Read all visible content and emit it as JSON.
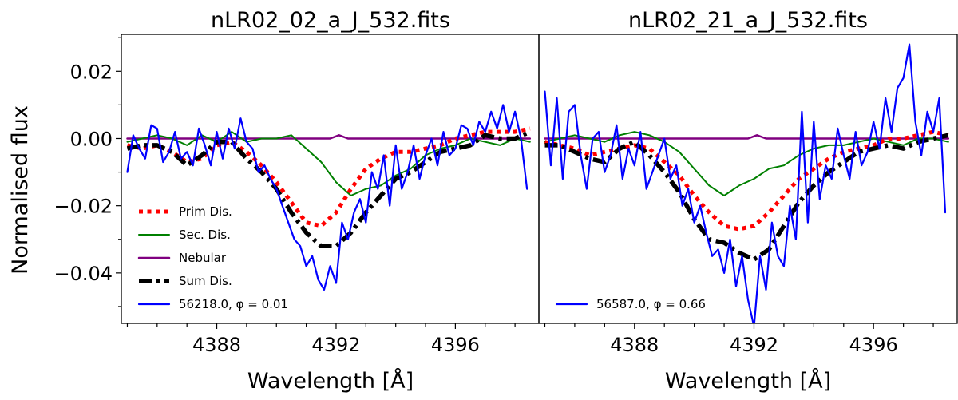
{
  "chart_data": {
    "type": "line",
    "ylabel": "Normalised flux",
    "xlabel": "Wavelength [Å]",
    "xlim": [
      4384.8,
      4398.8
    ],
    "ylim": [
      -0.055,
      0.031
    ],
    "xticks": [
      4388,
      4392,
      4396
    ],
    "xtick_labels": [
      "4388",
      "4392",
      "4396"
    ],
    "yticks": [
      0.02,
      0.0,
      -0.02,
      -0.04
    ],
    "ytick_labels": [
      "0.02",
      "0.00",
      "−0.02",
      "−0.04"
    ],
    "colors": {
      "prim": "#ff0000",
      "sec": "#008000",
      "neb": "#800080",
      "sum": "#000000",
      "obs": "#0000ff"
    },
    "panels": [
      {
        "title": "nLR02_02_a_J_532.fits",
        "legend": [
          {
            "key": "prim",
            "label": "Prim Dis."
          },
          {
            "key": "sec",
            "label": "Sec. Dis."
          },
          {
            "key": "neb",
            "label": "Nebular"
          },
          {
            "key": "sum",
            "label": "Sum Dis."
          },
          {
            "key": "obs",
            "label": "56218.0, φ = 0.01"
          }
        ],
        "series": [
          {
            "key": "neb",
            "name": "Nebular",
            "x": [
              4385.0,
              4390.0,
              4391.8,
              4392.1,
              4392.4,
              4398.5
            ],
            "y": [
              0.0,
              0.0,
              0.0,
              0.001,
              0.0,
              0.0
            ]
          },
          {
            "key": "sec",
            "name": "Sec. Dis.",
            "x": [
              4385.0,
              4385.5,
              4386.0,
              4386.5,
              4387.0,
              4387.5,
              4388.0,
              4388.5,
              4389.0,
              4389.5,
              4390.0,
              4390.5,
              4391.0,
              4391.5,
              4392.0,
              4392.5,
              4393.0,
              4393.5,
              4394.0,
              4394.5,
              4395.0,
              4395.5,
              4396.0,
              4396.5,
              4397.0,
              4397.5,
              4398.0,
              4398.5
            ],
            "y": [
              -0.001,
              0.0,
              0.001,
              0.0,
              -0.002,
              0.001,
              -0.001,
              0.002,
              -0.001,
              0.0,
              0.0,
              0.001,
              -0.003,
              -0.007,
              -0.013,
              -0.017,
              -0.015,
              -0.014,
              -0.011,
              -0.009,
              -0.005,
              -0.003,
              -0.002,
              0.0,
              -0.001,
              -0.002,
              0.0,
              -0.001
            ]
          },
          {
            "key": "prim",
            "name": "Prim Dis.",
            "x": [
              4385.0,
              4385.5,
              4386.0,
              4386.5,
              4387.0,
              4387.5,
              4388.0,
              4388.5,
              4389.0,
              4389.5,
              4390.0,
              4390.5,
              4391.0,
              4391.5,
              4392.0,
              4392.5,
              4393.0,
              4393.5,
              4394.0,
              4394.5,
              4395.0,
              4395.5,
              4396.0,
              4396.5,
              4397.0,
              4397.5,
              4398.0,
              4398.5
            ],
            "y": [
              -0.002,
              -0.003,
              -0.002,
              -0.004,
              -0.007,
              -0.006,
              -0.002,
              -0.001,
              -0.004,
              -0.008,
              -0.013,
              -0.019,
              -0.025,
              -0.026,
              -0.022,
              -0.015,
              -0.009,
              -0.006,
              -0.004,
              -0.004,
              -0.003,
              -0.002,
              0.0,
              0.001,
              0.002,
              0.002,
              0.002,
              0.003
            ]
          },
          {
            "key": "sum",
            "name": "Sum Dis.",
            "x": [
              4385.0,
              4385.5,
              4386.0,
              4386.5,
              4387.0,
              4387.5,
              4388.0,
              4388.5,
              4389.0,
              4389.5,
              4390.0,
              4390.5,
              4391.0,
              4391.5,
              4392.0,
              4392.5,
              4393.0,
              4393.5,
              4394.0,
              4394.5,
              4395.0,
              4395.5,
              4396.0,
              4396.5,
              4397.0,
              4397.5,
              4398.0,
              4398.5
            ],
            "y": [
              -0.003,
              -0.002,
              -0.002,
              -0.004,
              -0.008,
              -0.005,
              -0.001,
              -0.001,
              -0.006,
              -0.01,
              -0.015,
              -0.022,
              -0.028,
              -0.032,
              -0.032,
              -0.028,
              -0.022,
              -0.017,
              -0.012,
              -0.01,
              -0.007,
              -0.004,
              -0.003,
              -0.002,
              0.001,
              0.0,
              0.0,
              0.002
            ]
          },
          {
            "key": "obs",
            "name": "56218.0, φ = 0.01",
            "x": [
              4385.0,
              4385.2,
              4385.4,
              4385.6,
              4385.8,
              4386.0,
              4386.2,
              4386.4,
              4386.6,
              4386.8,
              4387.0,
              4387.2,
              4387.4,
              4387.6,
              4387.8,
              4388.0,
              4388.2,
              4388.4,
              4388.6,
              4388.8,
              4389.0,
              4389.2,
              4389.4,
              4389.6,
              4389.8,
              4390.0,
              4390.2,
              4390.4,
              4390.6,
              4390.8,
              4391.0,
              4391.2,
              4391.4,
              4391.6,
              4391.8,
              4392.0,
              4392.2,
              4392.4,
              4392.6,
              4392.8,
              4393.0,
              4393.2,
              4393.4,
              4393.6,
              4393.8,
              4394.0,
              4394.2,
              4394.4,
              4394.6,
              4394.8,
              4395.0,
              4395.2,
              4395.4,
              4395.6,
              4395.8,
              4396.0,
              4396.2,
              4396.4,
              4396.6,
              4396.8,
              4397.0,
              4397.2,
              4397.4,
              4397.6,
              4397.8,
              4398.0,
              4398.2,
              4398.4
            ],
            "y": [
              -0.01,
              0.001,
              -0.003,
              -0.006,
              0.004,
              0.003,
              -0.007,
              -0.004,
              0.002,
              -0.006,
              -0.004,
              -0.008,
              0.003,
              -0.002,
              -0.008,
              0.002,
              -0.006,
              0.003,
              -0.003,
              0.006,
              -0.001,
              -0.003,
              -0.01,
              -0.008,
              -0.012,
              -0.015,
              -0.02,
              -0.025,
              -0.03,
              -0.032,
              -0.038,
              -0.035,
              -0.042,
              -0.045,
              -0.038,
              -0.043,
              -0.025,
              -0.03,
              -0.022,
              -0.018,
              -0.025,
              -0.01,
              -0.015,
              -0.005,
              -0.02,
              -0.002,
              -0.015,
              -0.01,
              -0.002,
              -0.012,
              -0.005,
              0.0,
              -0.008,
              0.002,
              -0.005,
              -0.003,
              0.004,
              0.003,
              -0.002,
              0.005,
              0.002,
              0.008,
              0.003,
              0.01,
              0.002,
              0.008,
              0.0,
              -0.015
            ]
          }
        ]
      },
      {
        "title": "nLR02_21_a_J_532.fits",
        "legend": [
          {
            "key": "obs",
            "label": "56587.0, φ = 0.66"
          }
        ],
        "series": [
          {
            "key": "neb",
            "name": "Nebular",
            "x": [
              4385.0,
              4390.0,
              4391.8,
              4392.1,
              4392.4,
              4398.5
            ],
            "y": [
              0.0,
              0.0,
              0.0,
              0.001,
              0.0,
              0.0
            ]
          },
          {
            "key": "sec",
            "name": "Sec. Dis.",
            "x": [
              4385.0,
              4385.5,
              4386.0,
              4386.5,
              4387.0,
              4387.5,
              4388.0,
              4388.5,
              4389.0,
              4389.5,
              4390.0,
              4390.5,
              4391.0,
              4391.5,
              4392.0,
              4392.5,
              4393.0,
              4393.5,
              4394.0,
              4394.5,
              4395.0,
              4395.5,
              4396.0,
              4396.5,
              4397.0,
              4397.5,
              4398.0,
              4398.5
            ],
            "y": [
              -0.001,
              0.0,
              0.001,
              0.0,
              -0.001,
              0.001,
              0.002,
              0.001,
              -0.001,
              -0.004,
              -0.009,
              -0.014,
              -0.017,
              -0.014,
              -0.012,
              -0.009,
              -0.008,
              -0.005,
              -0.003,
              -0.002,
              -0.002,
              -0.001,
              0.0,
              -0.001,
              -0.002,
              0.0,
              0.0,
              -0.001
            ]
          },
          {
            "key": "prim",
            "name": "Prim Dis.",
            "x": [
              4385.0,
              4385.5,
              4386.0,
              4386.5,
              4387.0,
              4387.5,
              4388.0,
              4388.5,
              4389.0,
              4389.5,
              4390.0,
              4390.5,
              4391.0,
              4391.5,
              4392.0,
              4392.5,
              4393.0,
              4393.5,
              4394.0,
              4394.5,
              4395.0,
              4395.5,
              4396.0,
              4396.5,
              4397.0,
              4397.5,
              4398.0,
              4398.5
            ],
            "y": [
              -0.001,
              -0.002,
              -0.003,
              -0.005,
              -0.004,
              -0.003,
              -0.002,
              -0.003,
              -0.007,
              -0.011,
              -0.017,
              -0.022,
              -0.026,
              -0.027,
              -0.026,
              -0.022,
              -0.017,
              -0.012,
              -0.009,
              -0.006,
              -0.004,
              -0.003,
              -0.002,
              0.0,
              0.0,
              0.001,
              0.002,
              0.001
            ]
          },
          {
            "key": "sum",
            "name": "Sum Dis.",
            "x": [
              4385.0,
              4385.5,
              4386.0,
              4386.5,
              4387.0,
              4387.5,
              4388.0,
              4388.5,
              4389.0,
              4389.5,
              4390.0,
              4390.5,
              4391.0,
              4391.5,
              4392.0,
              4392.5,
              4393.0,
              4393.5,
              4394.0,
              4394.5,
              4395.0,
              4395.5,
              4396.0,
              4396.5,
              4397.0,
              4397.5,
              4398.0,
              4398.5
            ],
            "y": [
              -0.002,
              -0.002,
              -0.004,
              -0.006,
              -0.007,
              -0.003,
              -0.001,
              -0.005,
              -0.01,
              -0.016,
              -0.024,
              -0.03,
              -0.031,
              -0.034,
              -0.036,
              -0.033,
              -0.026,
              -0.019,
              -0.014,
              -0.01,
              -0.007,
              -0.004,
              -0.003,
              -0.002,
              -0.003,
              -0.001,
              0.0,
              0.001
            ]
          },
          {
            "key": "obs",
            "name": "56587.0, φ = 0.66",
            "x": [
              4385.0,
              4385.2,
              4385.4,
              4385.6,
              4385.8,
              4386.0,
              4386.2,
              4386.4,
              4386.6,
              4386.8,
              4387.0,
              4387.2,
              4387.4,
              4387.6,
              4387.8,
              4388.0,
              4388.2,
              4388.4,
              4388.6,
              4388.8,
              4389.0,
              4389.2,
              4389.4,
              4389.6,
              4389.8,
              4390.0,
              4390.2,
              4390.4,
              4390.6,
              4390.8,
              4391.0,
              4391.2,
              4391.4,
              4391.6,
              4391.8,
              4392.0,
              4392.2,
              4392.4,
              4392.6,
              4392.8,
              4393.0,
              4393.2,
              4393.4,
              4393.6,
              4393.8,
              4394.0,
              4394.2,
              4394.4,
              4394.6,
              4394.8,
              4395.0,
              4395.2,
              4395.4,
              4395.6,
              4395.8,
              4396.0,
              4396.2,
              4396.4,
              4396.6,
              4396.8,
              4397.0,
              4397.2,
              4397.4,
              4397.6,
              4397.8,
              4398.0,
              4398.2,
              4398.4
            ],
            "y": [
              0.014,
              -0.008,
              0.012,
              -0.012,
              0.008,
              0.01,
              -0.005,
              -0.015,
              0.0,
              0.002,
              -0.01,
              -0.005,
              0.004,
              -0.012,
              -0.003,
              -0.008,
              0.002,
              -0.015,
              -0.01,
              -0.005,
              0.0,
              -0.012,
              -0.008,
              -0.02,
              -0.015,
              -0.025,
              -0.02,
              -0.028,
              -0.035,
              -0.033,
              -0.04,
              -0.03,
              -0.044,
              -0.035,
              -0.048,
              -0.056,
              -0.035,
              -0.045,
              -0.025,
              -0.035,
              -0.038,
              -0.02,
              -0.03,
              0.008,
              -0.025,
              0.005,
              -0.018,
              -0.008,
              -0.012,
              0.003,
              -0.005,
              -0.012,
              0.002,
              -0.008,
              -0.004,
              0.005,
              -0.003,
              0.012,
              0.002,
              0.015,
              0.018,
              0.028,
              0.005,
              -0.005,
              0.008,
              0.002,
              0.012,
              -0.022
            ]
          }
        ]
      }
    ]
  }
}
